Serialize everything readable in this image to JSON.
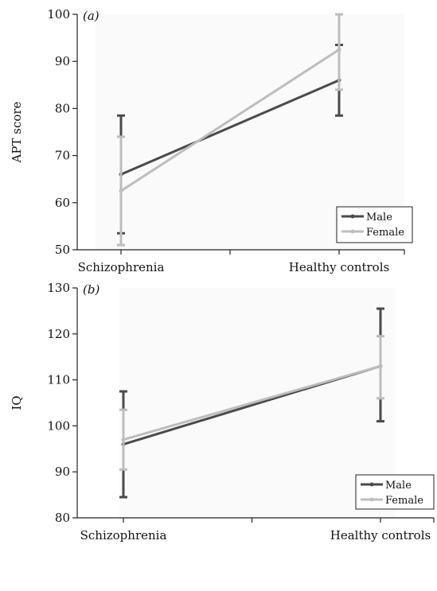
{
  "chart_data": [
    {
      "type": "line",
      "panel_label": "(a)",
      "ylabel": "APT score",
      "ylim": [
        50,
        100
      ],
      "yticks": [
        "50",
        "60",
        "70",
        "80",
        "90",
        "100"
      ],
      "categories": [
        "Schizophrenia",
        "Healthy controls"
      ],
      "legend": "bottom-right",
      "series": [
        {
          "name": "Male",
          "color": "#4a4a4a",
          "values": [
            66,
            86
          ],
          "error_low": [
            53.5,
            78.5
          ],
          "error_high": [
            78.5,
            93.5
          ]
        },
        {
          "name": "Female",
          "color": "#bdbdbd",
          "values": [
            62.5,
            92.5
          ],
          "error_low": [
            51,
            84
          ],
          "error_high": [
            74,
            100
          ]
        }
      ]
    },
    {
      "type": "line",
      "panel_label": "(b)",
      "ylabel": "IQ",
      "ylim": [
        80,
        130
      ],
      "yticks": [
        "80",
        "90",
        "100",
        "110",
        "120",
        "130"
      ],
      "categories": [
        "Schizophrenia",
        "Healthy controls"
      ],
      "legend": "bottom-right",
      "series": [
        {
          "name": "Male",
          "color": "#4a4a4a",
          "values": [
            96,
            113
          ],
          "error_low": [
            84.5,
            101
          ],
          "error_high": [
            107.5,
            125.5
          ]
        },
        {
          "name": "Female",
          "color": "#bdbdbd",
          "values": [
            97,
            113
          ],
          "error_low": [
            90.5,
            106
          ],
          "error_high": [
            103.5,
            119.5
          ]
        }
      ]
    }
  ]
}
